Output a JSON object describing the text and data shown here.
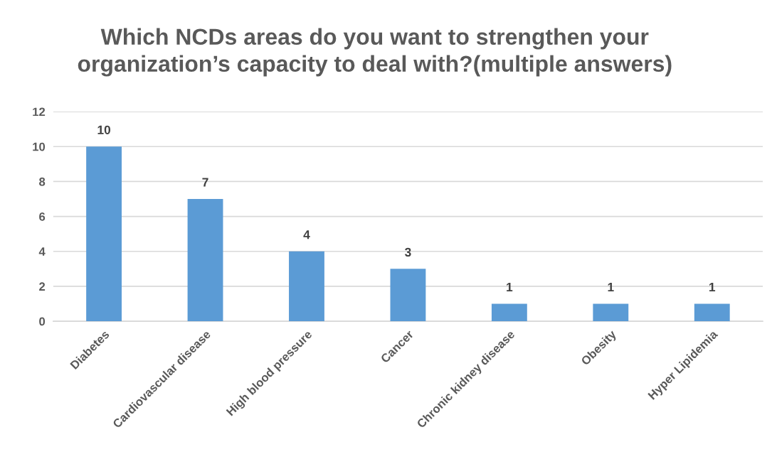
{
  "chart_data": {
    "type": "bar",
    "title": "Which NCDs areas do you want to strengthen your organization’s capacity to deal with?(multiple answers)",
    "categories": [
      "Diabetes",
      "Cardiovascular disease",
      "High blood pressure",
      "Cancer",
      "Chronic kidney disease",
      "Obesity",
      "Hyper Lipidemia"
    ],
    "values": [
      10,
      7,
      4,
      3,
      1,
      1,
      1
    ],
    "color": "#5b9bd5",
    "ylim": [
      0,
      12
    ],
    "yticks": [
      0,
      2,
      4,
      6,
      8,
      10,
      12
    ],
    "grid": "y",
    "data_labels": true,
    "legend": false
  }
}
